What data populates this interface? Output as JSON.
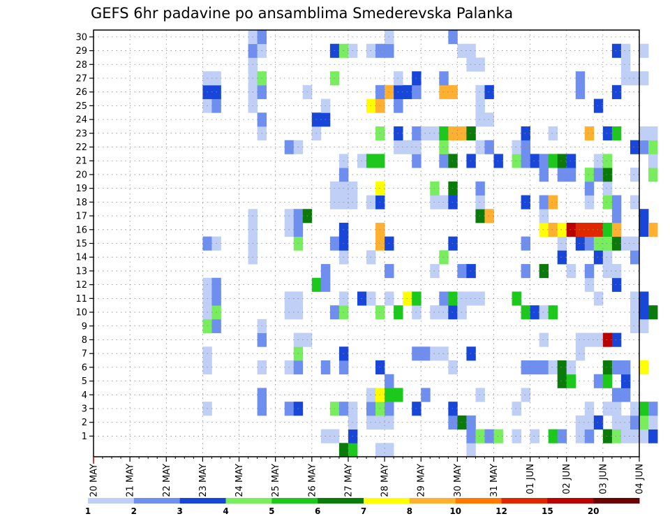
{
  "chart_data": {
    "type": "heatmap",
    "title": "GEFS 6hr padavine po ansamblima Smederevska Palanka",
    "xlabel": "",
    "ylabel": "",
    "x_tick_labels": [
      "20 MAY",
      "21 MAY",
      "22 MAY",
      "23 MAY",
      "24 MAY",
      "25 MAY",
      "26 MAY",
      "27 MAY",
      "28 MAY",
      "29 MAY",
      "30 MAY",
      "31 MAY",
      "01 JUN",
      "02 JUN",
      "03 JUN",
      "04 JUN"
    ],
    "y_tick_labels": [
      "1",
      "2",
      "3",
      "4",
      "5",
      "6",
      "7",
      "8",
      "9",
      "10",
      "11",
      "12",
      "13",
      "14",
      "15",
      "16",
      "17",
      "18",
      "19",
      "20",
      "21",
      "22",
      "23",
      "24",
      "25",
      "26",
      "27",
      "28",
      "29",
      "30"
    ],
    "x_range": [
      "20 MAY 00Z",
      "04 JUN 00Z"
    ],
    "time_step_hours": 6,
    "ensemble_members": 30,
    "grid": true,
    "legend_position": "bottom",
    "legend_levels": [
      "1",
      "2",
      "3",
      "4",
      "5",
      "6",
      "7",
      "8",
      "10",
      "12",
      "15",
      "20"
    ],
    "legend_colors": [
      "#bfcff5",
      "#6f8ff0",
      "#1846d8",
      "#78ee5e",
      "#1dc81d",
      "#0a7a0a",
      "#ffff00",
      "#ffb030",
      "#ff7800",
      "#e02800",
      "#bb0000",
      "#6a0000"
    ],
    "columns": [
      {
        "time_index": 12,
        "values": {
          "3": 1.5,
          "6": 1.5,
          "7": 1.5,
          "9": 4.5,
          "10": 1.5,
          "11": 1.5,
          "12": 1.5,
          "15": 2.5,
          "25": 1.5,
          "26": 3.5,
          "27": 1.5
        }
      },
      {
        "time_index": 13,
        "values": {
          "9": 2.5,
          "10": 4.5,
          "11": 2.5,
          "12": 2.5,
          "15": 1.5,
          "25": 2.5,
          "26": 3.5,
          "27": 1.5
        }
      },
      {
        "time_index": 17,
        "values": {
          "14": 1.5,
          "15": 1.5,
          "16": 1.5,
          "17": 1.5,
          "25": 1.5,
          "26": 1.5,
          "27": 1.5,
          "28": 1.5,
          "29": 2.5,
          "30": 1.5
        }
      },
      {
        "time_index": 18,
        "values": {
          "3": 2.5,
          "4": 2.5,
          "6": 1.5,
          "8": 2.5,
          "9": 1.5,
          "23": 1.5,
          "24": 2.5,
          "26": 2.5,
          "27": 4.5,
          "29": 1.5,
          "30": 2.5
        }
      },
      {
        "time_index": 21,
        "values": {
          "3": 2.5,
          "6": 1.5,
          "10": 1.5,
          "11": 1.5,
          "16": 1.5,
          "17": 1.5,
          "22": 2.5
        }
      },
      {
        "time_index": 22,
        "values": {
          "3": 3.5,
          "6": 2.5,
          "7": 4.5,
          "8": 1.5,
          "10": 1.5,
          "11": 1.5,
          "15": 4.5,
          "16": 2.5,
          "17": 2.5,
          "22": 1.5
        }
      },
      {
        "time_index": 23,
        "values": {
          "8": 1.5,
          "17": 6.5,
          "26": 1.5
        }
      },
      {
        "time_index": 24,
        "values": {
          "12": 5.5,
          "23": 1.5,
          "24": 3.5
        }
      },
      {
        "time_index": 25,
        "values": {
          "1": 1.5,
          "6": 2.5,
          "12": 2.5,
          "13": 2.5,
          "24": 3.5,
          "25": 1.5
        }
      },
      {
        "time_index": 26,
        "values": {
          "1": 1.5,
          "3": 4.5,
          "10": 2.5,
          "15": 2.5,
          "18": 1.5,
          "19": 1.5,
          "27": 4.5,
          "29": 3.5
        }
      },
      {
        "time_index": 27,
        "values": {
          "0": 6.5,
          "3": 2.5,
          "6": 2.5,
          "7": 3.5,
          "10": 4.5,
          "11": 1.5,
          "14": 1.5,
          "15": 3.5,
          "16": 3.5,
          "18": 1.5,
          "19": 1.5,
          "20": 2.5,
          "21": 1.5,
          "29": 4.5
        }
      },
      {
        "time_index": 28,
        "values": {
          "0": 5.5,
          "1": 3.5,
          "2": 1.5,
          "3": 1.5,
          "18": 1.5,
          "19": 1.5,
          "29": 1.5
        }
      },
      {
        "time_index": 29,
        "values": {
          "11": 3.5,
          "21": 1.5
        }
      },
      {
        "time_index": 30,
        "values": {
          "2": 1.5,
          "3": 2.5,
          "4": 1.5,
          "11": 1.5,
          "14": 1.5,
          "18": 1.5,
          "21": 5.5,
          "25": 7.5,
          "29": 1.5
        }
      },
      {
        "time_index": 31,
        "values": {
          "0": 1.5,
          "2": 1.5,
          "3": 4.5,
          "4": 7.5,
          "6": 3.5,
          "10": 4.5,
          "15": 8.5,
          "16": 8.5,
          "18": 3.5,
          "19": 7.5,
          "21": 5.5,
          "23": 4.5,
          "25": 8.5,
          "26": 2.5,
          "29": 2.5
        }
      },
      {
        "time_index": 32,
        "values": {
          "0": 1.5,
          "2": 1.5,
          "3": 2.5,
          "4": 5.5,
          "5": 2.5,
          "11": 1.5,
          "13": 2.5,
          "15": 3.5,
          "26": 9.5,
          "29": 2.5,
          "30": 1.5
        }
      },
      {
        "time_index": 33,
        "values": {
          "4": 5.5,
          "10": 5.5,
          "22": 1.5,
          "23": 3.5,
          "25": 2.5,
          "26": 3.5,
          "27": 1.5
        }
      },
      {
        "time_index": 34,
        "values": {
          "11": 7.5,
          "22": 1.5,
          "26": 3.5
        }
      },
      {
        "time_index": 35,
        "values": {
          "3": 3.5,
          "7": 2.5,
          "10": 1.5,
          "11": 5.5,
          "21": 2.5,
          "22": 1.5,
          "23": 2.5,
          "26": 2.5,
          "27": 3.5
        }
      },
      {
        "time_index": 36,
        "values": {
          "4": 2.5,
          "7": 2.5,
          "23": 1.5
        }
      },
      {
        "time_index": 37,
        "values": {
          "7": 1.5,
          "10": 1.5,
          "13": 1.5,
          "18": 1.5,
          "19": 4.5,
          "23": 1.5
        }
      },
      {
        "time_index": 38,
        "values": {
          "7": 1.5,
          "10": 1.5,
          "11": 2.5,
          "14": 4.5,
          "18": 1.5,
          "21": 2.5,
          "22": 4.5,
          "23": 5.5,
          "26": 9.5,
          "27": 2.5
        }
      },
      {
        "time_index": 39,
        "values": {
          "2": 2.5,
          "3": 3.5,
          "6": 1.5,
          "10": 3.5,
          "11": 5.5,
          "15": 3.5,
          "18": 3.5,
          "19": 6.5,
          "21": 6.5,
          "23": 8.5,
          "26": 9.5,
          "30": 2.5
        }
      },
      {
        "time_index": 40,
        "values": {
          "2": 6.5,
          "10": 1.5,
          "11": 1.5,
          "13": 2.5,
          "23": 9.5,
          "29": 1.5
        }
      },
      {
        "time_index": 41,
        "values": {
          "0": 1.5,
          "1": 2.5,
          "2": 2.5,
          "7": 3.5,
          "11": 1.5,
          "13": 3.5,
          "21": 3.5,
          "23": 6.5,
          "28": 1.5,
          "29": 1.5
        }
      },
      {
        "time_index": 42,
        "values": {
          "1": 4.5,
          "4": 1.5,
          "11": 1.5,
          "17": 6.5,
          "18": 1.5,
          "19": 2.5,
          "22": 1.5,
          "24": 1.5,
          "25": 1.5,
          "26": 1.5,
          "28": 1.5
        }
      },
      {
        "time_index": 43,
        "values": {
          "1": 2.5,
          "17": 8.5,
          "22": 2.5,
          "24": 1.5,
          "26": 3.5
        }
      },
      {
        "time_index": 44,
        "values": {
          "1": 4.5,
          "21": 3.5
        }
      },
      {
        "time_index": 46,
        "values": {
          "1": 1.5,
          "3": 1.5,
          "11": 5.5,
          "21": 4.5,
          "22": 1.5
        }
      },
      {
        "time_index": 47,
        "values": {
          "4": 1.5,
          "6": 2.5,
          "10": 5.5,
          "13": 2.5,
          "15": 2.5,
          "18": 3.5,
          "21": 2.5,
          "22": 2.5,
          "23": 3.5
        }
      },
      {
        "time_index": 48,
        "values": {
          "1": 1.5,
          "6": 2.5,
          "10": 3.5,
          "21": 3.5
        }
      },
      {
        "time_index": 49,
        "values": {
          "6": 2.5,
          "8": 1.5,
          "10": 1.5,
          "13": 6.5,
          "16": 7.5,
          "17": 1.5,
          "18": 2.5,
          "20": 2.5,
          "21": 2.5
        }
      },
      {
        "time_index": 50,
        "values": {
          "1": 5.5,
          "6": 1.5,
          "10": 5.5,
          "16": 8.5,
          "18": 9.5,
          "21": 5.5,
          "23": 1.5
        }
      },
      {
        "time_index": 51,
        "values": {
          "1": 2.5,
          "5": 6.5,
          "6": 6.5,
          "14": 3.5,
          "15": 1.5,
          "16": 7.5,
          "20": 2.5,
          "21": 6.5
        }
      },
      {
        "time_index": 52,
        "values": {
          "5": 5.5,
          "6": 1.5,
          "13": 1.5,
          "16": 15.5,
          "20": 2.5,
          "21": 3.5
        }
      },
      {
        "time_index": 53,
        "values": {
          "1": 1.5,
          "2": 1.5,
          "7": 1.5,
          "8": 1.5,
          "15": 3.5,
          "16": 12.5,
          "26": 2.5,
          "27": 2.5
        }
      },
      {
        "time_index": 54,
        "values": {
          "1": 2.5,
          "2": 1.5,
          "3": 1.5,
          "8": 1.5,
          "12": 1.5,
          "13": 2.5,
          "15": 2.5,
          "16": 13.5,
          "18": 1.5,
          "19": 2.5,
          "20": 4.5,
          "23": 8.5
        }
      },
      {
        "time_index": 55,
        "values": {
          "2": 3.5,
          "5": 2.5,
          "8": 1.5,
          "11": 1.5,
          "14": 3.5,
          "15": 4.5,
          "16": 13.5,
          "20": 2.5,
          "21": 1.5,
          "25": 3.5
        }
      },
      {
        "time_index": 56,
        "values": {
          "1": 6.5,
          "3": 1.5,
          "5": 5.5,
          "6": 6.5,
          "8": 17.5,
          "13": 1.5,
          "14": 1.5,
          "15": 4.5,
          "16": 5.5,
          "18": 4.5,
          "19": 1.5,
          "20": 6.5,
          "21": 4.5,
          "23": 3.5
        }
      },
      {
        "time_index": 57,
        "values": {
          "1": 4.5,
          "2": 1.5,
          "3": 1.5,
          "4": 2.5,
          "6": 2.5,
          "8": 3.5,
          "12": 3.5,
          "13": 1.5,
          "15": 6.5,
          "16": 9.5,
          "17": 2.5,
          "18": 2.5,
          "23": 5.5,
          "26": 3.5,
          "29": 3.5
        }
      },
      {
        "time_index": 58,
        "values": {
          "1": 1.5,
          "2": 1.5,
          "4": 2.5,
          "5": 3.5,
          "6": 2.5,
          "15": 1.5,
          "27": 1.5,
          "28": 1.5,
          "29": 1.5
        }
      },
      {
        "time_index": 59,
        "values": {
          "1": 1.5,
          "2": 2.5,
          "3": 1.5,
          "9": 1.5,
          "10": 1.5,
          "11": 1.5,
          "14": 2.5,
          "15": 1.5,
          "18": 1.5,
          "20": 1.5,
          "22": 3.5,
          "27": 1.5
        }
      },
      {
        "time_index": 60,
        "values": {
          "1": 1.5,
          "2": 4.5,
          "3": 5.5,
          "6": 7.5,
          "9": 1.5,
          "10": 3.5,
          "11": 3.5,
          "16": 3.5,
          "17": 3.5,
          "22": 2.5,
          "23": 1.5,
          "27": 1.5,
          "29": 1.5
        }
      },
      {
        "time_index": 61,
        "values": {
          "1": 3.5,
          "2": 1.5,
          "3": 2.5,
          "10": 6.5,
          "16": 8.5,
          "20": 4.5,
          "21": 1.5,
          "22": 4.5,
          "23": 1.5
        }
      }
    ]
  }
}
